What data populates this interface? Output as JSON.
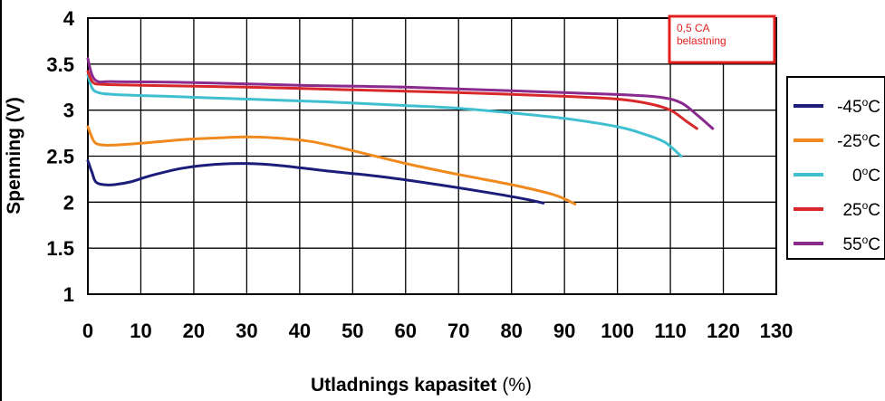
{
  "chart_data": {
    "type": "line",
    "title": "",
    "xlabel_bold": "Utladnings kapasitet",
    "xlabel_unit": "(%)",
    "ylabel": "Spenning (V)",
    "xlim": [
      0,
      130
    ],
    "ylim": [
      1,
      4
    ],
    "xticks": [
      "0",
      "10",
      "20",
      "30",
      "40",
      "50",
      "60",
      "70",
      "80",
      "90",
      "100",
      "110",
      "120",
      "130"
    ],
    "yticks": [
      "1",
      "1.5",
      "2",
      "2.5",
      "3",
      "3.5",
      "4"
    ],
    "grid": true,
    "legend_position": "right",
    "annotation": {
      "line1": "0,5 CA",
      "line2": "belastning",
      "color": "#e0201f"
    },
    "series": [
      {
        "name": "-45",
        "unit": "°C",
        "color": "#1c1c7a",
        "points": [
          [
            0,
            2.45
          ],
          [
            0.8,
            2.32
          ],
          [
            1.5,
            2.22
          ],
          [
            3,
            2.19
          ],
          [
            5,
            2.19
          ],
          [
            8,
            2.22
          ],
          [
            12,
            2.29
          ],
          [
            18,
            2.37
          ],
          [
            24,
            2.41
          ],
          [
            30,
            2.42
          ],
          [
            36,
            2.4
          ],
          [
            45,
            2.34
          ],
          [
            55,
            2.28
          ],
          [
            65,
            2.2
          ],
          [
            75,
            2.11
          ],
          [
            82,
            2.04
          ],
          [
            86,
            1.99
          ]
        ]
      },
      {
        "name": "-25",
        "unit": "°C",
        "color": "#f08a1e",
        "points": [
          [
            0,
            2.82
          ],
          [
            0.8,
            2.7
          ],
          [
            1.5,
            2.64
          ],
          [
            3,
            2.62
          ],
          [
            5,
            2.62
          ],
          [
            10,
            2.64
          ],
          [
            18,
            2.68
          ],
          [
            25,
            2.7
          ],
          [
            30,
            2.71
          ],
          [
            35,
            2.7
          ],
          [
            42,
            2.66
          ],
          [
            50,
            2.56
          ],
          [
            60,
            2.42
          ],
          [
            70,
            2.3
          ],
          [
            80,
            2.19
          ],
          [
            88,
            2.08
          ],
          [
            92,
            1.98
          ]
        ]
      },
      {
        "name": "0",
        "unit": "°C",
        "color": "#3fbfd0",
        "points": [
          [
            0,
            3.38
          ],
          [
            0.8,
            3.24
          ],
          [
            2,
            3.19
          ],
          [
            5,
            3.17
          ],
          [
            15,
            3.15
          ],
          [
            30,
            3.12
          ],
          [
            45,
            3.09
          ],
          [
            60,
            3.05
          ],
          [
            70,
            3.02
          ],
          [
            80,
            2.97
          ],
          [
            90,
            2.91
          ],
          [
            100,
            2.82
          ],
          [
            105,
            2.74
          ],
          [
            109,
            2.65
          ],
          [
            112,
            2.5
          ]
        ]
      },
      {
        "name": "25",
        "unit": "°C",
        "color": "#d8282a",
        "points": [
          [
            0,
            3.42
          ],
          [
            1,
            3.3
          ],
          [
            3,
            3.28
          ],
          [
            10,
            3.27
          ],
          [
            30,
            3.25
          ],
          [
            50,
            3.22
          ],
          [
            70,
            3.19
          ],
          [
            90,
            3.15
          ],
          [
            100,
            3.12
          ],
          [
            106,
            3.07
          ],
          [
            110,
            3.0
          ],
          [
            113,
            2.88
          ],
          [
            115,
            2.8
          ]
        ]
      },
      {
        "name": "55",
        "unit": "°C",
        "color": "#8a2a8e",
        "points": [
          [
            0,
            3.56
          ],
          [
            0.8,
            3.38
          ],
          [
            2,
            3.31
          ],
          [
            5,
            3.31
          ],
          [
            20,
            3.3
          ],
          [
            40,
            3.27
          ],
          [
            60,
            3.25
          ],
          [
            80,
            3.21
          ],
          [
            100,
            3.17
          ],
          [
            108,
            3.14
          ],
          [
            112,
            3.08
          ],
          [
            115,
            2.95
          ],
          [
            118,
            2.8
          ]
        ]
      }
    ]
  }
}
